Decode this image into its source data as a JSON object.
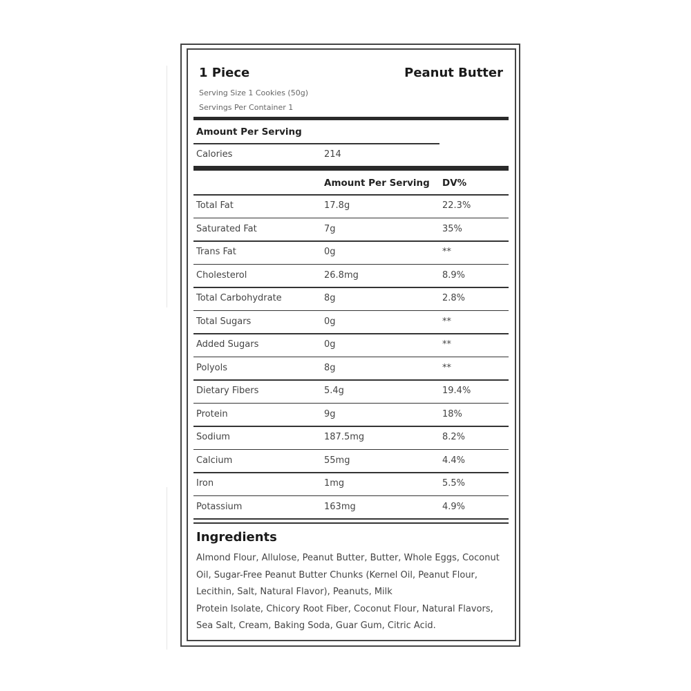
{
  "header": {
    "title_left": "1 Piece",
    "title_right": "Peanut Butter",
    "serving_size": "Serving Size 1 Cookies (50g)",
    "servings_per_container": "Servings Per Container 1"
  },
  "amount_per_serving_label": "Amount Per Serving",
  "calories": {
    "label": "Calories",
    "value": "214"
  },
  "table": {
    "headers": [
      "",
      "Amount Per Serving",
      "DV%"
    ],
    "rows": [
      {
        "name": "Total Fat",
        "amount": "17.8g",
        "dv": "22.3%"
      },
      {
        "name": "Saturated Fat",
        "amount": "7g",
        "dv": "35%"
      },
      {
        "name": "Trans Fat",
        "amount": "0g",
        "dv": "**"
      },
      {
        "name": "Cholesterol",
        "amount": "26.8mg",
        "dv": "8.9%"
      },
      {
        "name": "Total Carbohydrate",
        "amount": "8g",
        "dv": "2.8%"
      },
      {
        "name": "Total Sugars",
        "amount": "0g",
        "dv": "**"
      },
      {
        "name": "Added Sugars",
        "amount": "0g",
        "dv": "**"
      },
      {
        "name": "Polyols",
        "amount": "8g",
        "dv": "**"
      },
      {
        "name": "Dietary Fibers",
        "amount": "5.4g",
        "dv": "19.4%"
      },
      {
        "name": "Protein",
        "amount": "9g",
        "dv": "18%"
      },
      {
        "name": "Sodium",
        "amount": "187.5mg",
        "dv": "8.2%"
      },
      {
        "name": "Calcium",
        "amount": "55mg",
        "dv": "4.4%"
      },
      {
        "name": "Iron",
        "amount": "1mg",
        "dv": "5.5%"
      },
      {
        "name": "Potassium",
        "amount": "163mg",
        "dv": "4.9%"
      }
    ]
  },
  "ingredients": {
    "title": "Ingredients",
    "lines": [
      "Almond Flour, Allulose, Peanut Butter, Butter, Whole Eggs, Coconut",
      "Oil, Sugar-Free Peanut Butter Chunks (Kernel Oil, Peanut Flour,",
      "Lecithin, Salt, Natural Flavor), Peanuts, Milk",
      "Protein Isolate, Chicory Root Fiber, Coconut Flour, Natural Flavors,",
      "Sea Salt, Cream, Baking Soda, Guar Gum, Citric Acid."
    ]
  }
}
